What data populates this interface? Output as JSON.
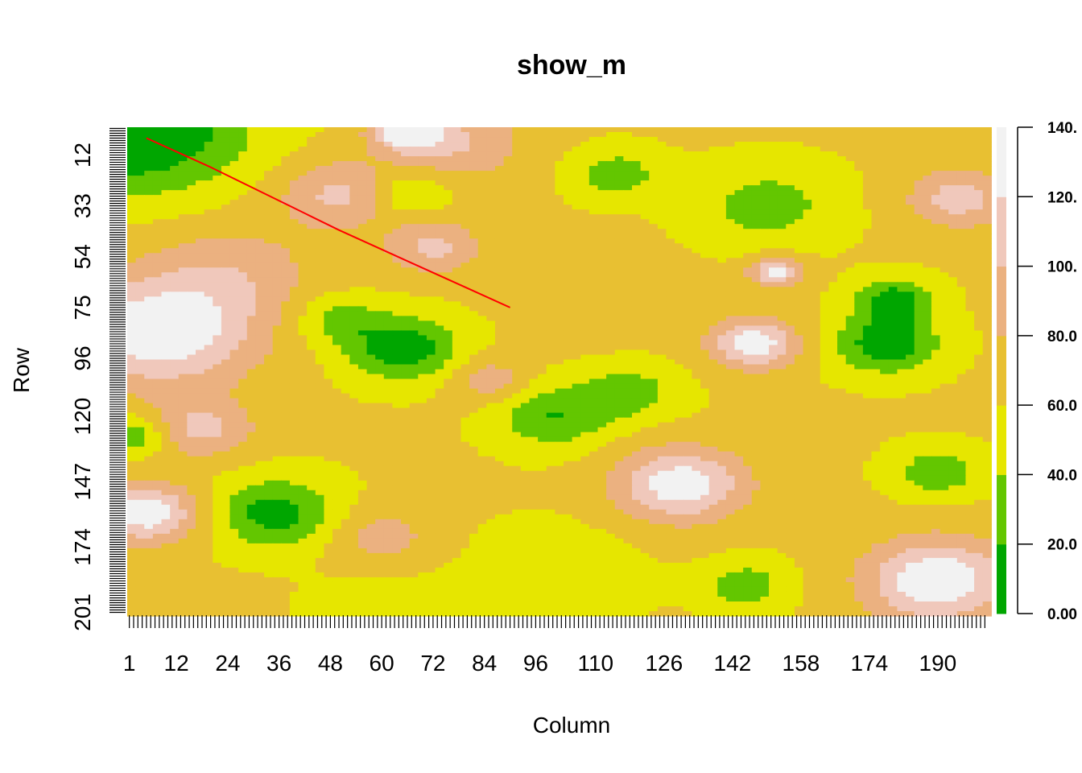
{
  "chart_data": {
    "type": "heatmap",
    "title": "show_m",
    "xlabel": "Column",
    "ylabel": "Row",
    "x_range": [
      1,
      201
    ],
    "y_range": [
      1,
      201
    ],
    "x_tick_labels": [
      "1",
      "12",
      "24",
      "36",
      "48",
      "60",
      "72",
      "84",
      "96",
      "110",
      "126",
      "142",
      "158",
      "174",
      "190"
    ],
    "x_tick_values": [
      1,
      12,
      24,
      36,
      48,
      60,
      72,
      84,
      96,
      110,
      126,
      142,
      158,
      174,
      190
    ],
    "y_tick_labels": [
      "12",
      "33",
      "54",
      "75",
      "96",
      "120",
      "147",
      "174",
      "201"
    ],
    "y_tick_values": [
      12,
      33,
      54,
      75,
      96,
      120,
      147,
      174,
      201
    ],
    "legend": {
      "placement": "right",
      "breaks": [
        0,
        20,
        40,
        60,
        80,
        100,
        120,
        140
      ],
      "labels": [
        "0.00",
        "20.0",
        "40.0",
        "60.0",
        "80.0",
        "100.",
        "120.",
        "140."
      ],
      "colors": [
        "#00a600",
        "#63c600",
        "#e6e600",
        "#e8c032",
        "#ebb180",
        "#f0c8bb",
        "#f2f2f2"
      ]
    },
    "line": {
      "color": "#ff0000",
      "points": [
        [
          5,
          5
        ],
        [
          20,
          17
        ],
        [
          35,
          30
        ],
        [
          50,
          43
        ],
        [
          65,
          55
        ],
        [
          80,
          67
        ],
        [
          90,
          75
        ]
      ]
    },
    "field_blobs": [
      {
        "col": 1,
        "row": 1,
        "value": -10,
        "radius": 26
      },
      {
        "col": 50,
        "row": 28,
        "value": 105,
        "radius": 14
      },
      {
        "col": 78,
        "row": 7,
        "value": 100,
        "radius": 15
      },
      {
        "col": 66,
        "row": 28,
        "value": 30,
        "radius": 9
      },
      {
        "col": 72,
        "row": 50,
        "value": 105,
        "radius": 11
      },
      {
        "col": 66,
        "row": 2,
        "value": 140,
        "radius": 8
      },
      {
        "col": 65,
        "row": 92,
        "value": 5,
        "radius": 13
      },
      {
        "col": 50,
        "row": 80,
        "value": 30,
        "radius": 10
      },
      {
        "col": 8,
        "row": 85,
        "value": 140,
        "radius": 22
      },
      {
        "col": 18,
        "row": 125,
        "value": 105,
        "radius": 12
      },
      {
        "col": 5,
        "row": 160,
        "value": 135,
        "radius": 12
      },
      {
        "col": 35,
        "row": 160,
        "value": 10,
        "radius": 14
      },
      {
        "col": 2,
        "row": 128,
        "value": 20,
        "radius": 8
      },
      {
        "col": 85,
        "row": 105,
        "value": 95,
        "radius": 9
      },
      {
        "col": 100,
        "row": 120,
        "value": 20,
        "radius": 13
      },
      {
        "col": 118,
        "row": 110,
        "value": 28,
        "radius": 11
      },
      {
        "col": 115,
        "row": 20,
        "value": 28,
        "radius": 10
      },
      {
        "col": 150,
        "row": 33,
        "value": 30,
        "radius": 16
      },
      {
        "col": 147,
        "row": 90,
        "value": 135,
        "radius": 10
      },
      {
        "col": 152,
        "row": 60,
        "value": 130,
        "radius": 6
      },
      {
        "col": 178,
        "row": 90,
        "value": 5,
        "radius": 12
      },
      {
        "col": 180,
        "row": 72,
        "value": 10,
        "radius": 9
      },
      {
        "col": 195,
        "row": 30,
        "value": 110,
        "radius": 12
      },
      {
        "col": 190,
        "row": 143,
        "value": 25,
        "radius": 10
      },
      {
        "col": 130,
        "row": 148,
        "value": 135,
        "radius": 15
      },
      {
        "col": 190,
        "row": 188,
        "value": 140,
        "radius": 17
      },
      {
        "col": 145,
        "row": 190,
        "value": 28,
        "radius": 10
      },
      {
        "col": 100,
        "row": 185,
        "value": 42,
        "radius": 18
      },
      {
        "col": 60,
        "row": 170,
        "value": 90,
        "radius": 12
      },
      {
        "col": 60,
        "row": 200,
        "value": 50,
        "radius": 16
      },
      {
        "col": 115,
        "row": 75,
        "value": 65,
        "radius": 20
      },
      {
        "col": 140,
        "row": 130,
        "value": 60,
        "radius": 18
      },
      {
        "col": 25,
        "row": 60,
        "value": 90,
        "radius": 20
      }
    ],
    "field_base": 62
  }
}
